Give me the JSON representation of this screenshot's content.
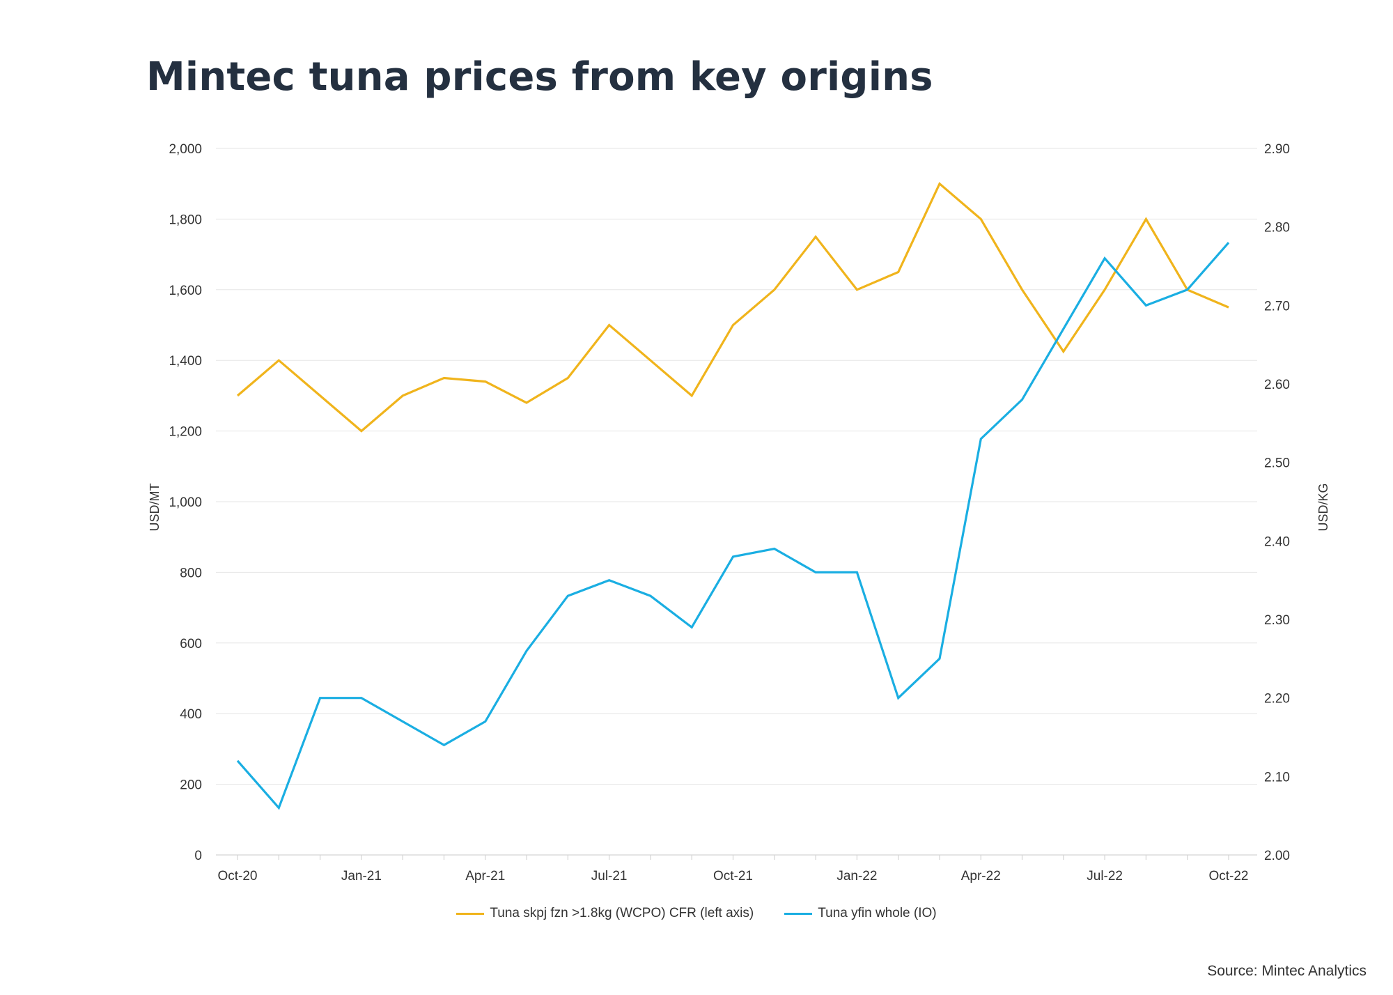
{
  "chart_data": {
    "type": "line",
    "title": "Mintec tuna prices from key origins",
    "x": [
      "Oct-20",
      "Nov-20",
      "Dec-20",
      "Jan-21",
      "Feb-21",
      "Mar-21",
      "Apr-21",
      "May-21",
      "Jun-21",
      "Jul-21",
      "Aug-21",
      "Sep-21",
      "Oct-21",
      "Nov-21",
      "Dec-21",
      "Jan-22",
      "Feb-22",
      "Mar-22",
      "Apr-22",
      "May-22",
      "Jun-22",
      "Jul-22",
      "Aug-22",
      "Sep-22",
      "Oct-22"
    ],
    "x_tick_labels": [
      "Oct-20",
      "Jan-21",
      "Apr-21",
      "Jul-21",
      "Oct-21",
      "Jan-22",
      "Apr-22",
      "Jul-22",
      "Oct-22"
    ],
    "series": [
      {
        "name": "Tuna skpj fzn >1.8kg (WCPO) CFR (left axis)",
        "axis": "left",
        "color": "#f0b41c",
        "values": [
          1300,
          1400,
          1300,
          1200,
          1300,
          1350,
          1340,
          1280,
          1350,
          1500,
          1400,
          1300,
          1500,
          1600,
          1750,
          1600,
          1650,
          1900,
          1800,
          1600,
          1425,
          1600,
          1800,
          1600,
          1550
        ]
      },
      {
        "name": "Tuna yfin whole (IO)",
        "axis": "right",
        "color": "#1aaee2",
        "values": [
          2.12,
          2.06,
          2.2,
          2.2,
          2.17,
          2.14,
          2.17,
          2.26,
          2.33,
          2.35,
          2.33,
          2.29,
          2.38,
          2.39,
          2.36,
          2.36,
          2.2,
          2.25,
          2.53,
          2.58,
          2.67,
          2.76,
          2.7,
          2.72,
          2.78
        ]
      }
    ],
    "y_left": {
      "label": "USD/MT",
      "range": [
        0,
        2000
      ],
      "ticks": [
        0,
        200,
        400,
        600,
        800,
        1000,
        1200,
        1400,
        1600,
        1800,
        2000
      ],
      "tick_labels": [
        "0",
        "200",
        "400",
        "600",
        "800",
        "1,000",
        "1,200",
        "1,400",
        "1,600",
        "1,800",
        "2,000"
      ]
    },
    "y_right": {
      "label": "USD/KG",
      "range": [
        2.0,
        2.9
      ],
      "ticks": [
        2.0,
        2.1,
        2.2,
        2.3,
        2.4,
        2.5,
        2.6,
        2.7,
        2.8,
        2.9
      ],
      "tick_labels": [
        "2.00",
        "2.10",
        "2.20",
        "2.30",
        "2.40",
        "2.50",
        "2.60",
        "2.70",
        "2.80",
        "2.90"
      ]
    },
    "grid": "horizontal",
    "legend_position": "bottom"
  },
  "source": "Source: Mintec Analytics"
}
